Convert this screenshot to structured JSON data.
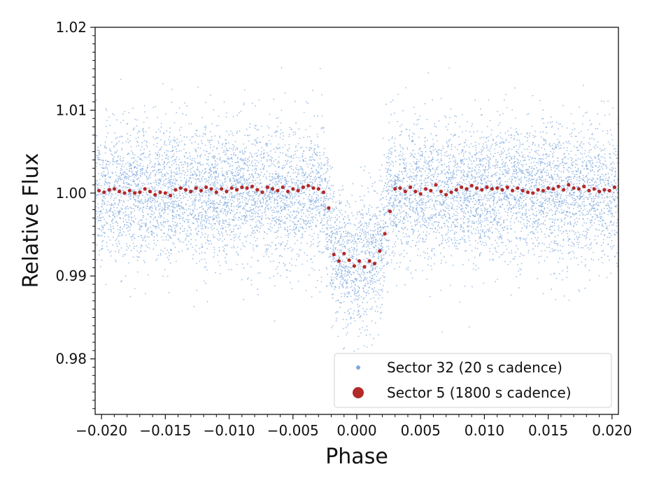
{
  "chart_data": {
    "type": "scatter",
    "xlabel": "Phase",
    "ylabel": "Relative Flux",
    "xlim": [
      -0.0205,
      0.0205
    ],
    "ylim": [
      0.9733,
      1.02
    ],
    "xticks": [
      -0.02,
      -0.015,
      -0.01,
      -0.005,
      0.0,
      0.005,
      0.01,
      0.015,
      0.02
    ],
    "xtick_labels": [
      "−0.020",
      "−0.015",
      "−0.010",
      "−0.005",
      "0.000",
      "0.005",
      "0.010",
      "0.015",
      "0.020"
    ],
    "yticks": [
      0.98,
      0.99,
      1.0,
      1.01,
      1.02
    ],
    "ytick_labels": [
      "0.98",
      "0.99",
      "1.00",
      "1.01",
      "1.02"
    ],
    "grid": false,
    "legend_position": "lower-right",
    "transit": {
      "ingress_start": -0.0026,
      "full_start": -0.0019,
      "full_end": 0.0019,
      "egress_end": 0.0026,
      "depth": 0.0085
    },
    "series": [
      {
        "name": "Sector 32 (20 s cadence)",
        "color": "#7fa8dc",
        "marker": "small-dot",
        "n_points": 9000,
        "scatter_sigma": 0.004,
        "x_range": [
          -0.0205,
          0.0205
        ]
      },
      {
        "name": "Sector 5 (1800 s cadence)",
        "color": "#b22a2a",
        "marker": "large-dot",
        "x": [
          -0.0202,
          -0.0198,
          -0.0194,
          -0.019,
          -0.0186,
          -0.0182,
          -0.0178,
          -0.0174,
          -0.017,
          -0.0166,
          -0.0162,
          -0.0158,
          -0.0154,
          -0.015,
          -0.0146,
          -0.0142,
          -0.0138,
          -0.0134,
          -0.013,
          -0.0126,
          -0.0122,
          -0.0118,
          -0.0114,
          -0.011,
          -0.0106,
          -0.0102,
          -0.0098,
          -0.0094,
          -0.009,
          -0.0086,
          -0.0082,
          -0.0078,
          -0.0074,
          -0.007,
          -0.0066,
          -0.0062,
          -0.0058,
          -0.0054,
          -0.005,
          -0.0046,
          -0.0042,
          -0.0038,
          -0.0034,
          -0.003,
          -0.0026,
          -0.0022,
          -0.0018,
          -0.0014,
          -0.001,
          -0.0006,
          -0.0002,
          0.0002,
          0.0006,
          0.001,
          0.0014,
          0.0018,
          0.0022,
          0.0026,
          0.003,
          0.0034,
          0.0038,
          0.0042,
          0.0046,
          0.005,
          0.0054,
          0.0058,
          0.0062,
          0.0066,
          0.007,
          0.0074,
          0.0078,
          0.0082,
          0.0086,
          0.009,
          0.0094,
          0.0098,
          0.0102,
          0.0106,
          0.011,
          0.0114,
          0.0118,
          0.0122,
          0.0126,
          0.013,
          0.0134,
          0.0138,
          0.0142,
          0.0146,
          0.015,
          0.0154,
          0.0158,
          0.0162,
          0.0166,
          0.017,
          0.0174,
          0.0178,
          0.0182,
          0.0186,
          0.019,
          0.0194,
          0.0198,
          0.0202
        ],
        "y": [
          1.0003,
          1.0001,
          1.0004,
          1.0005,
          1.0002,
          1.0,
          1.0003,
          1.0,
          1.0001,
          1.0005,
          1.0002,
          0.9998,
          1.0001,
          1.0,
          0.9997,
          1.0004,
          1.0006,
          1.0004,
          1.0002,
          1.0006,
          1.0003,
          1.0007,
          1.0005,
          1.0001,
          1.0005,
          1.0002,
          1.0006,
          1.0004,
          1.0007,
          1.0006,
          1.0008,
          1.0004,
          1.0001,
          1.0007,
          1.0005,
          1.0003,
          1.0007,
          1.0002,
          1.0005,
          1.0003,
          1.0007,
          1.0009,
          1.0006,
          1.0005,
          1.0001,
          0.9982,
          0.9926,
          0.9918,
          0.9927,
          0.9919,
          0.9912,
          0.9918,
          0.9911,
          0.9918,
          0.9915,
          0.993,
          0.9951,
          0.9978,
          1.0005,
          1.0006,
          1.0002,
          1.0007,
          1.0002,
          0.9999,
          1.0005,
          1.0003,
          1.001,
          1.0002,
          0.9998,
          1.0001,
          1.0004,
          1.0007,
          1.0005,
          1.0009,
          1.0006,
          1.0004,
          1.0007,
          1.0005,
          1.0006,
          1.0004,
          1.0007,
          1.0003,
          1.0006,
          1.0003,
          1.0001,
          1.0,
          1.0004,
          1.0003,
          1.0006,
          1.0005,
          1.0008,
          1.0004,
          1.001,
          1.0006,
          1.0005,
          1.0008,
          1.0003,
          1.0005,
          1.0002,
          1.0004,
          1.0003,
          1.0007
        ]
      }
    ]
  }
}
